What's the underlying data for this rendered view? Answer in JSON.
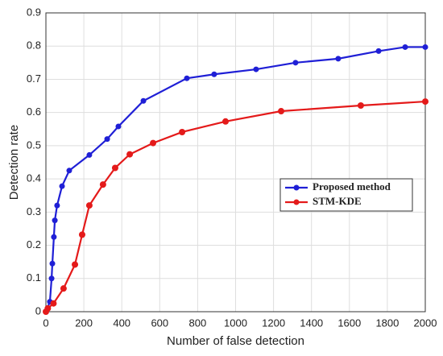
{
  "chart_data": {
    "type": "line",
    "xlabel": "Number of false detection",
    "ylabel": "Detection rate",
    "xlim": [
      0,
      2000
    ],
    "xticks": [
      0,
      200,
      400,
      600,
      800,
      1000,
      1200,
      1400,
      1600,
      1800,
      2000
    ],
    "ylim": [
      0,
      0.9
    ],
    "yticks": [
      0,
      0.1,
      0.2,
      0.3,
      0.4,
      0.5,
      0.6,
      0.7,
      0.8,
      0.9
    ],
    "grid": true,
    "legend": "right",
    "series": [
      {
        "name": "Proposed method",
        "color": "#1f1fd6",
        "x": [
          0,
          21,
          30,
          34,
          42,
          47,
          59,
          85,
          123,
          229,
          323,
          382,
          514,
          743,
          887,
          1108,
          1316,
          1541,
          1754,
          1894,
          2000
        ],
        "values": [
          0,
          0.03,
          0.1,
          0.145,
          0.225,
          0.275,
          0.32,
          0.378,
          0.425,
          0.472,
          0.52,
          0.558,
          0.635,
          0.703,
          0.715,
          0.73,
          0.75,
          0.762,
          0.785,
          0.797,
          0.797
        ]
      },
      {
        "name": "STM-KDE",
        "color": "#e41a1a",
        "x": [
          0,
          10,
          40,
          93,
          153,
          191,
          229,
          301,
          365,
          442,
          565,
          718,
          947,
          1240,
          1660,
          2000
        ],
        "values": [
          0,
          0.01,
          0.025,
          0.07,
          0.142,
          0.232,
          0.32,
          0.383,
          0.433,
          0.474,
          0.508,
          0.541,
          0.573,
          0.604,
          0.621,
          0.633
        ]
      }
    ]
  }
}
